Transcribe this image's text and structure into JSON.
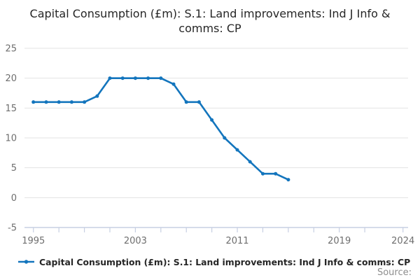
{
  "chart_data": {
    "type": "line",
    "title": "Capital Consumption (£m): S.1: Land improvements: Ind J Info & comms: CP",
    "xlabel": "",
    "ylabel": "",
    "series": [
      {
        "name": "Capital Consumption (£m): S.1: Land improvements: Ind J Info & comms: CP",
        "x": [
          1995,
          1996,
          1997,
          1998,
          1999,
          2000,
          2001,
          2002,
          2003,
          2004,
          2005,
          2006,
          2007,
          2008,
          2009,
          2010,
          2011,
          2012,
          2013,
          2014,
          2015
        ],
        "values": [
          16,
          16,
          16,
          16,
          16,
          17,
          20,
          20,
          20,
          20,
          20,
          19,
          16,
          16,
          13,
          10,
          8,
          6,
          4,
          4,
          3
        ]
      }
    ],
    "xlim": [
      1994.3,
      2024.4
    ],
    "ylim": [
      -5,
      25
    ],
    "yticks": [
      25,
      20,
      15,
      10,
      5,
      0,
      -5
    ],
    "xticks": [
      1995,
      1997,
      1999,
      2001,
      2003,
      2005,
      2007,
      2009,
      2011,
      2013,
      2015,
      2017,
      2019,
      2021,
      2024
    ],
    "labeled_xticks": [
      "1995",
      "2003",
      "2011",
      "2019",
      "2024"
    ],
    "grid": "horizontal-only",
    "legend_position": "bottom-left",
    "colors": {
      "line": "#1375bd",
      "marker": "#1375bd",
      "gridline": "#e3e3e3",
      "axis": "#c7cfe2",
      "tick_label": "#6e6e6e",
      "title_text": "#262626",
      "source_text": "#8d8d8d"
    }
  },
  "legend": {
    "label": "Capital Consumption (£m): S.1: Land improvements: Ind J Info & comms: CP"
  },
  "footer": {
    "source_label": "Source:"
  }
}
